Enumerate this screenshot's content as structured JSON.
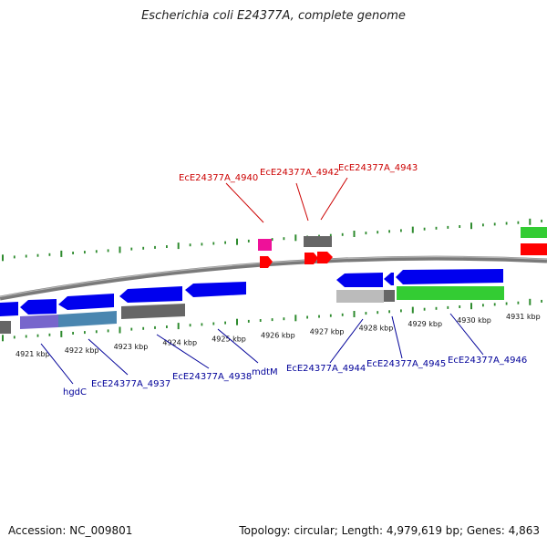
{
  "title": "Escherichia coli E24377A, complete genome",
  "footer": {
    "accession": "Accession: NC_009801",
    "summary": "Topology: circular; Length: 4,979,619 bp; Genes: 4,863"
  },
  "colors": {
    "forward_label": "#cc0000",
    "reverse_label": "#000099",
    "tick_green": "#2e8b2e",
    "backbone": "#7a7a7a",
    "cds_blue": "#0000ee",
    "cds_red": "#ff0000",
    "rna_magenta": "#ee1199",
    "green_feature": "#33cc33",
    "gray_feature": "#666666",
    "light_gray": "#bbbbbb",
    "purple_feature": "#7766cc",
    "steelblue_feature": "#4a86b0"
  },
  "scale_labels": [
    "4921 kbp",
    "4922 kbp",
    "4923 kbp",
    "4924 kbp",
    "4925 kbp",
    "4926 kbp",
    "4927 kbp",
    "4928 kbp",
    "4929 kbp",
    "4930 kbp",
    "4931 kbp"
  ],
  "forward_labels": [
    "EcE24377A_4940",
    "EcE24377A_4942",
    "EcE24377A_4943"
  ],
  "reverse_labels": [
    "hgdC",
    "EcE24377A_4937",
    "EcE24377A_4938",
    "mdtM",
    "EcE24377A_4944",
    "EcE24377A_4945",
    "EcE24377A_4946"
  ]
}
